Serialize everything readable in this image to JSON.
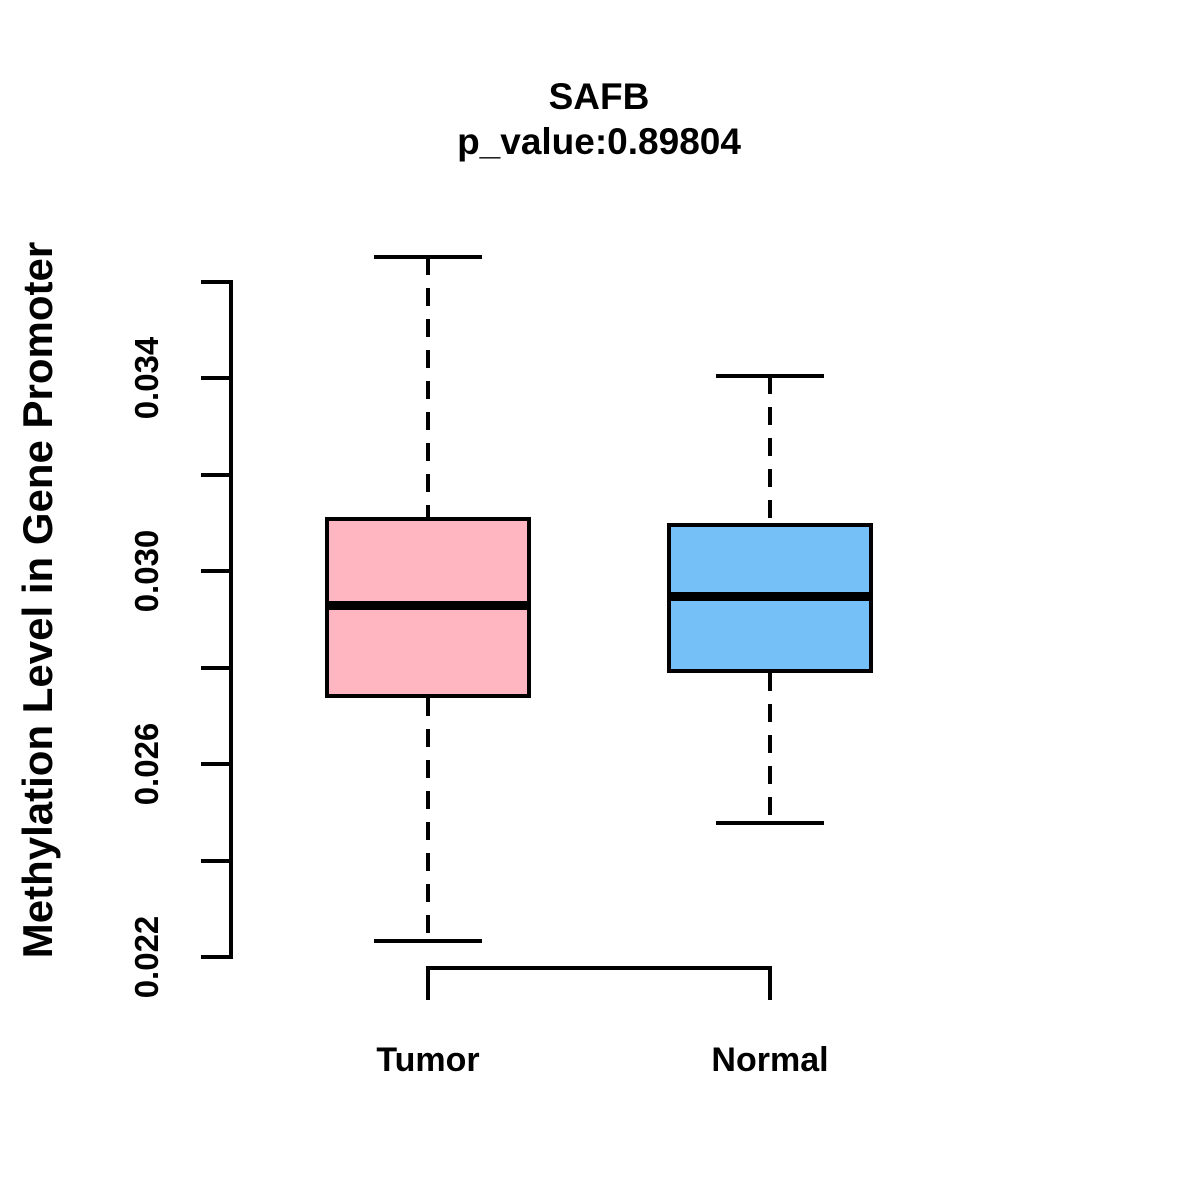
{
  "chart_data": {
    "type": "boxplot",
    "title": "SAFB",
    "subtitle": "p_value:0.89804",
    "ylabel": "Methylation Level in Gene Promoter",
    "xlabel": "",
    "categories": [
      "Tumor",
      "Normal"
    ],
    "y_axis": {
      "min": 0.022,
      "max": 0.036,
      "tick_step": 0.002,
      "labeled_ticks": [
        0.022,
        0.026,
        0.03,
        0.034
      ],
      "tick_label_format_decimals": 3,
      "side": "left"
    },
    "series": [
      {
        "name": "Tumor",
        "fill": "#FFB6C1",
        "whisker_low": 0.02233,
        "q1": 0.02737,
        "median": 0.0293,
        "q3": 0.03112,
        "whisker_high": 0.03652
      },
      {
        "name": "Normal",
        "fill": "#76C0F8",
        "whisker_low": 0.02478,
        "q1": 0.02789,
        "median": 0.02947,
        "q3": 0.031,
        "whisker_high": 0.03405
      }
    ],
    "stroke_color": "#000000",
    "background_color": "#FFFFFF",
    "legend": "none",
    "grid": "off"
  }
}
